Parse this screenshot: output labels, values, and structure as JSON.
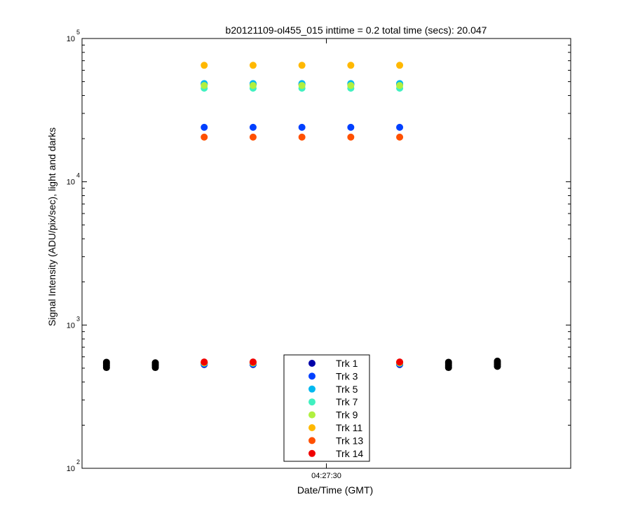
{
  "chart_data": {
    "type": "scatter",
    "title": "b20121109-ol455_015 inttime = 0.2 total time (secs): 20.047",
    "xlabel": "Date/Time (GMT)",
    "ylabel": "Signal Intensity (ADU/pix/sec), light and darks",
    "yscale": "log",
    "ylim": [
      100,
      100000
    ],
    "xlim": [
      0,
      10
    ],
    "grid": false,
    "legend_position": "bottom-center",
    "x_ticks": [
      {
        "x": 5,
        "label": "04:27:30"
      }
    ],
    "y_ticks": [
      {
        "value": 100,
        "base": "10",
        "exp": "2"
      },
      {
        "value": 1000,
        "base": "10",
        "exp": "3"
      },
      {
        "value": 10000,
        "base": "10",
        "exp": "4"
      },
      {
        "value": 100000,
        "base": "10",
        "exp": "5"
      }
    ],
    "x_light": [
      2.5,
      3.5,
      4.5,
      5.5,
      6.5
    ],
    "x_all": [
      0.5,
      1.5,
      2.5,
      3.5,
      4.5,
      5.5,
      6.5,
      7.5,
      8.5
    ],
    "light_frames": [
      0,
      1,
      4
    ],
    "darks": {
      "name": "",
      "color": "#000000",
      "x": [
        0.5,
        1.5,
        7.5,
        8.5
      ],
      "values": [
        [
          505,
          520,
          535,
          550
        ],
        [
          505,
          518,
          530,
          545
        ],
        [
          505,
          520,
          535,
          550
        ],
        [
          515,
          530,
          545,
          560
        ]
      ]
    },
    "series": [
      {
        "name": "Trk 1",
        "color": "#0000a8",
        "values": [
          48000,
          48000,
          48000,
          48000,
          48000
        ],
        "dark_level": 530
      },
      {
        "name": "Trk 3",
        "color": "#0040ff",
        "values": [
          24000,
          24000,
          24000,
          24000,
          24000
        ],
        "dark_level": 535
      },
      {
        "name": "Trk 5",
        "color": "#00b8f0",
        "values": [
          48500,
          48500,
          48500,
          48500,
          48500
        ],
        "dark_level": 540
      },
      {
        "name": "Trk 7",
        "color": "#40f0c0",
        "values": [
          45000,
          45000,
          45000,
          45000,
          45000
        ],
        "dark_level": 545
      },
      {
        "name": "Trk 9",
        "color": "#b0f040",
        "values": [
          47000,
          47000,
          47000,
          47000,
          47000
        ],
        "dark_level": 545
      },
      {
        "name": "Trk 11",
        "color": "#ffb800",
        "values": [
          65000,
          65000,
          65000,
          65000,
          65000
        ],
        "dark_level": 548
      },
      {
        "name": "Trk 13",
        "color": "#ff5000",
        "values": [
          20500,
          20500,
          20500,
          20500,
          20500
        ],
        "dark_level": 550
      },
      {
        "name": "Trk 14",
        "color": "#f00000",
        "values": [
          null,
          null,
          null,
          null,
          null
        ],
        "dark_level": 552
      }
    ]
  }
}
